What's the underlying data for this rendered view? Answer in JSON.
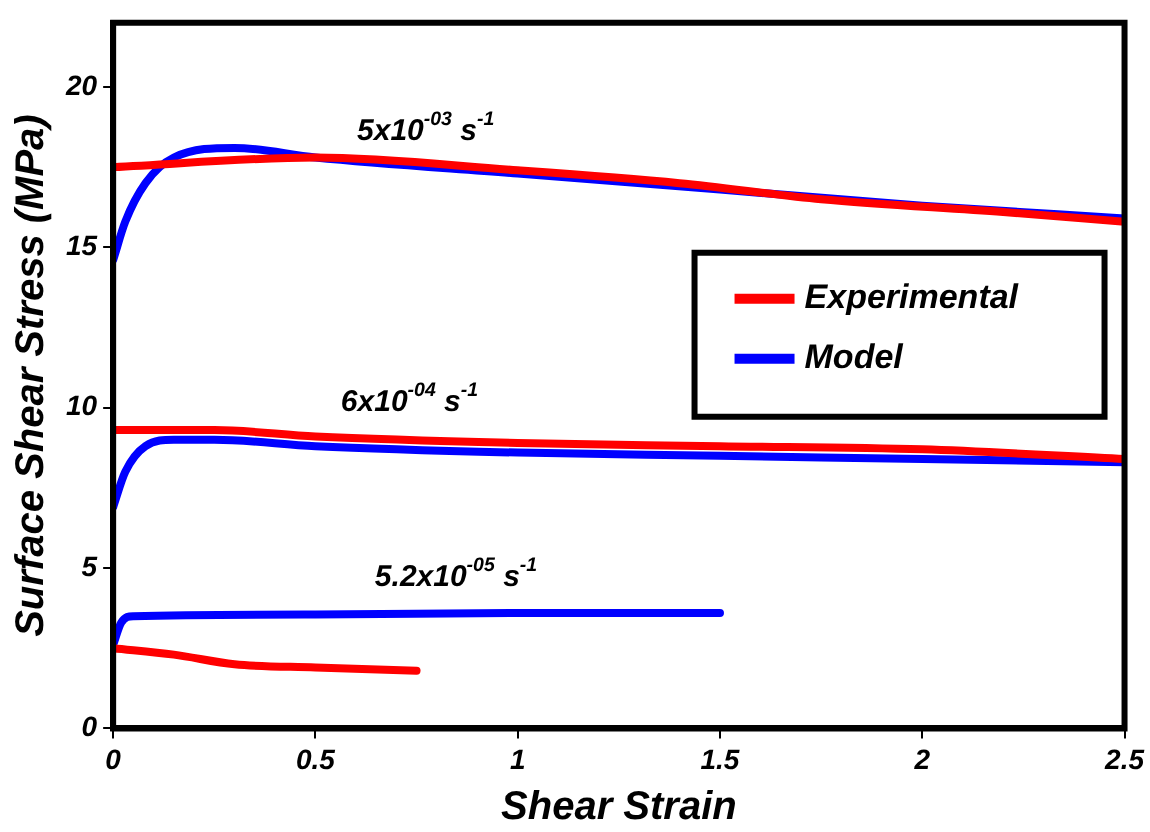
{
  "chart_data": {
    "type": "line",
    "xlabel": "Shear Strain",
    "ylabel": "Surface Shear Stress (MPa)",
    "xlim": [
      0,
      2.5
    ],
    "xticks": [
      0,
      0.5,
      1,
      1.5,
      2,
      2.5
    ],
    "ylim": [
      0,
      22
    ],
    "yticks": [
      0,
      5,
      10,
      15,
      20
    ],
    "grid": false,
    "legend": "top right",
    "marker": "none",
    "line_style": "solid",
    "annotations": [
      "5x10$^{-03}$ s$^{-1}$",
      "6x10$^{-04}$ s$^{-1}$",
      "5.2x10$^{-05}$ s$^{-1}$"
    ],
    "series": [
      {
        "name": "Experimental",
        "color": "#ff0000",
        "x": [
          0,
          0.5,
          1,
          1.4,
          1.75,
          2.2,
          2.5
        ],
        "values": [
          17.5,
          17.8,
          17.4,
          17.0,
          16.5,
          16.1,
          15.8
        ]
      },
      {
        "name": "Model",
        "color": "#0000ff",
        "x": [
          0,
          0.03,
          0.08,
          0.15,
          0.3,
          0.5,
          1,
          1.5,
          2,
          2.5
        ],
        "values": [
          14.6,
          15.8,
          17.0,
          17.8,
          18.1,
          17.8,
          17.3,
          16.8,
          16.3,
          15.9
        ]
      },
      {
        "color": "#ff0000",
        "x": [
          0,
          0.25,
          0.5,
          1,
          1.5,
          2,
          2.5
        ],
        "values": [
          9.3,
          9.3,
          9.1,
          8.9,
          8.8,
          8.7,
          8.4
        ]
      },
      {
        "color": "#0000ff",
        "x": [
          0,
          0.03,
          0.08,
          0.15,
          0.25,
          0.5,
          1,
          1.5,
          2,
          2.5
        ],
        "values": [
          6.9,
          8.0,
          8.8,
          9.0,
          9.0,
          8.8,
          8.6,
          8.5,
          8.4,
          8.3
        ]
      },
      {
        "color": "#ff0000",
        "x": [
          0,
          0.15,
          0.3,
          0.5,
          0.75
        ],
        "values": [
          2.5,
          2.3,
          2.0,
          1.9,
          1.8
        ]
      },
      {
        "color": "#0000ff",
        "x": [
          0,
          0.02,
          0.05,
          0.5,
          1,
          1.5
        ],
        "values": [
          2.6,
          3.3,
          3.5,
          3.55,
          3.6,
          3.6
        ]
      }
    ]
  }
}
